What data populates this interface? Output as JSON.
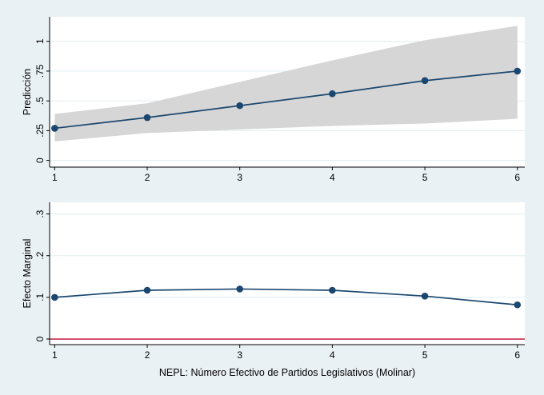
{
  "figure_title": "",
  "x_axis_title": "NEPL: Número Efectivo de Partidos Legislativos (Molinar)",
  "colors": {
    "background": "#eaf1f4",
    "plot_background": "#ffffff",
    "line": "#1a476f",
    "marker": "#1a476f",
    "ci_band": "#d6d6d6",
    "grid": "#e2edf0",
    "axis": "#000000",
    "text": "#000000",
    "zero_refline": "#c10534"
  },
  "chart_data": [
    {
      "type": "line",
      "title": "",
      "ylabel": "Predicción",
      "xlabel": "",
      "x": [
        1,
        2,
        3,
        4,
        5,
        6
      ],
      "series": [
        {
          "name": "Predicción",
          "values": [
            0.27,
            0.36,
            0.46,
            0.56,
            0.67,
            0.75
          ]
        }
      ],
      "ci_upper": [
        0.39,
        0.48,
        0.66,
        0.84,
        1.01,
        1.13
      ],
      "ci_lower": [
        0.16,
        0.23,
        0.26,
        0.29,
        0.31,
        0.35
      ],
      "xticks": [
        1,
        2,
        3,
        4,
        5,
        6
      ],
      "xtick_labels": [
        "1",
        "2",
        "3",
        "4",
        "5",
        "6"
      ],
      "yticks": [
        0,
        0.25,
        0.5,
        0.75,
        1
      ],
      "ytick_labels": [
        "0",
        ".25",
        ".5",
        ".75",
        "1"
      ],
      "xlim": [
        0.945,
        6.08
      ],
      "ylim": [
        -0.056,
        1.206
      ],
      "grid": true,
      "legend": "none",
      "marker": "circle"
    },
    {
      "type": "line",
      "title": "",
      "ylabel": "Efecto Marginal",
      "xlabel": "NEPL: Número Efectivo de Partidos Legislativos (Molinar)",
      "x": [
        1,
        2,
        3,
        4,
        5,
        6
      ],
      "series": [
        {
          "name": "Efecto Marginal",
          "values": [
            0.1,
            0.117,
            0.12,
            0.117,
            0.103,
            0.082
          ]
        }
      ],
      "refline_y": 0,
      "xticks": [
        1,
        2,
        3,
        4,
        5,
        6
      ],
      "xtick_labels": [
        "1",
        "2",
        "3",
        "4",
        "5",
        "6"
      ],
      "yticks": [
        0,
        0.1,
        0.2,
        0.3
      ],
      "ytick_labels": [
        "0",
        ".1",
        ".2",
        ".3"
      ],
      "xlim": [
        0.945,
        6.08
      ],
      "ylim": [
        -0.0134,
        0.328
      ],
      "grid": true,
      "legend": "none",
      "marker": "circle"
    }
  ]
}
